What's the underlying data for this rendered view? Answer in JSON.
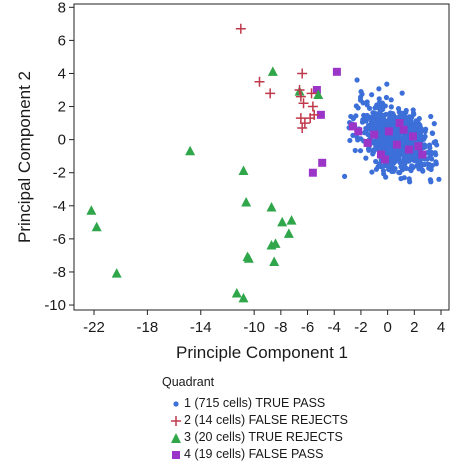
{
  "chart_data": {
    "type": "scatter",
    "title": "",
    "xlabel": "Principle Component 1",
    "ylabel": "Principal Component 2",
    "xlim": [
      -23.5,
      4.6
    ],
    "ylim": [
      -10.3,
      8.2
    ],
    "xticks": [
      -22,
      -18,
      -14,
      -10,
      -8,
      -6,
      -4,
      -2,
      0,
      2,
      4
    ],
    "yticks": [
      8,
      6,
      4,
      2,
      0,
      -2,
      -4,
      -6,
      -8,
      -10
    ],
    "grid": false,
    "legend_title": "Quadrant",
    "legend_position": "bottom",
    "series": [
      {
        "name": "1 (715 cells) TRUE PASS",
        "marker": "circle",
        "color": "#3d6fd9",
        "cluster": {
          "x_center": 0.7,
          "y_center": 0.0,
          "x_range": [
            -5.0,
            3.9
          ],
          "y_range": [
            -2.6,
            4.0
          ],
          "count": 715
        }
      },
      {
        "name": "2 (14 cells) FALSE REJECTS",
        "marker": "plus",
        "color": "#c0394b",
        "x": [
          -11.0,
          -9.6,
          -8.8,
          -6.4,
          -6.6,
          -6.5,
          -6.3,
          -6.5,
          -6.2,
          -6.4,
          -5.7,
          -5.6,
          -5.5,
          -5.8
        ],
        "y": [
          6.7,
          3.5,
          2.8,
          4.0,
          3.0,
          2.6,
          2.2,
          1.3,
          1.0,
          0.7,
          2.8,
          2.0,
          1.5,
          1.3
        ]
      },
      {
        "name": "3 (20 cells) TRUE REJECTS",
        "marker": "triangle",
        "color": "#2fa64a",
        "x": [
          -8.6,
          -6.6,
          -14.8,
          -10.8,
          -10.6,
          -22.2,
          -21.8,
          -20.3,
          -8.7,
          -7.9,
          -7.2,
          -7.4,
          -8.7,
          -8.4,
          -8.5,
          -10.5,
          -10.4,
          -11.3,
          -10.8,
          -5.2
        ],
        "y": [
          4.1,
          2.9,
          -0.7,
          -1.9,
          -3.8,
          -4.3,
          -5.3,
          -8.1,
          -4.1,
          -5.0,
          -4.9,
          -5.7,
          -6.4,
          -6.3,
          -7.4,
          -7.1,
          -7.2,
          -9.3,
          -9.6,
          2.7
        ]
      },
      {
        "name": "4 (19 cells) FALSE PASS",
        "marker": "square",
        "color": "#9b35c8",
        "x": [
          -3.8,
          -5.3,
          -5.0,
          -5.6,
          -4.9,
          -2.6,
          -2.2,
          -1.5,
          -1.0,
          -0.5,
          0.1,
          0.7,
          1.2,
          1.6,
          2.3,
          2.6,
          -0.2,
          0.9,
          1.9
        ],
        "y": [
          4.1,
          3.0,
          1.5,
          -2.0,
          -1.4,
          0.8,
          0.5,
          -0.2,
          0.3,
          -0.9,
          0.5,
          -0.3,
          0.6,
          -0.6,
          -0.4,
          -0.9,
          -1.2,
          1.0,
          0.2
        ]
      }
    ]
  }
}
